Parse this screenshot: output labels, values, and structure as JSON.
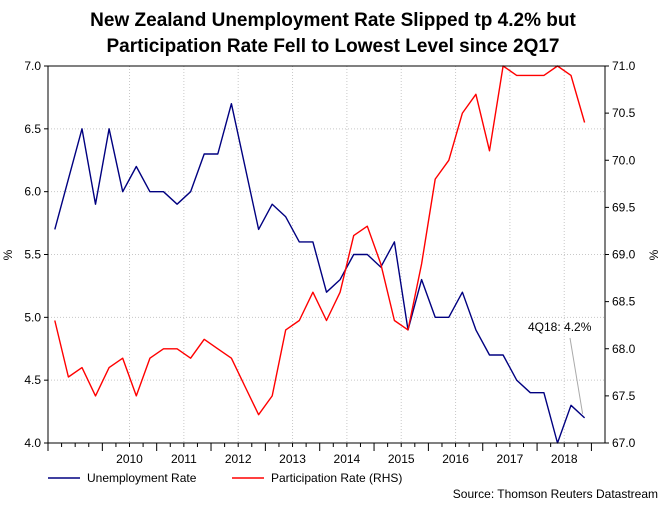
{
  "chart_data": {
    "type": "line",
    "title": "New Zealand Unemployment Rate Slipped tp 4.2% but",
    "subtitle": "Participation Rate Fell to Lowest Level since 2Q17",
    "left_axis": {
      "label": "%",
      "ylim": [
        4.0,
        7.0
      ],
      "ticks": [
        "4.0",
        "4.5",
        "5.0",
        "5.5",
        "6.0",
        "6.5",
        "7.0"
      ]
    },
    "right_axis": {
      "label": "%",
      "ylim": [
        67.0,
        71.0
      ],
      "ticks": [
        "67.0",
        "67.5",
        "68.0",
        "68.5",
        "69.0",
        "69.5",
        "70.0",
        "70.5",
        "71.0"
      ]
    },
    "x_ticks": [
      "2010",
      "2011",
      "2012",
      "2013",
      "2014",
      "2015",
      "2016",
      "2017",
      "2018"
    ],
    "x_start_year": 2009,
    "x_quarters": 41,
    "grid": true,
    "series": [
      {
        "name": "Unemployment Rate",
        "axis": "left",
        "color": "#000080",
        "values": [
          5.7,
          6.1,
          6.5,
          5.9,
          6.5,
          6.0,
          6.2,
          6.0,
          6.0,
          5.9,
          6.0,
          6.3,
          6.3,
          6.7,
          6.2,
          5.7,
          5.9,
          5.8,
          5.6,
          5.6,
          5.2,
          5.3,
          5.5,
          5.5,
          5.4,
          5.6,
          4.9,
          5.3,
          5.0,
          5.0,
          5.2,
          4.9,
          4.7,
          4.7,
          4.5,
          4.4,
          4.4,
          4.0,
          4.3,
          4.2
        ]
      },
      {
        "name": "Participation Rate (RHS)",
        "axis": "right",
        "color": "#ff0000",
        "values": [
          68.3,
          67.7,
          67.8,
          67.5,
          67.8,
          67.9,
          67.5,
          67.9,
          68.0,
          68.0,
          67.9,
          68.1,
          68.0,
          67.9,
          67.6,
          67.3,
          67.5,
          68.2,
          68.3,
          68.6,
          68.3,
          68.6,
          69.2,
          69.3,
          68.9,
          68.3,
          68.2,
          68.9,
          69.8,
          70.0,
          70.5,
          70.7,
          70.1,
          71.0,
          70.9,
          70.9,
          70.9,
          71.0,
          70.9,
          70.4
        ]
      }
    ],
    "annotation": {
      "text": "4Q18: 4.2%"
    }
  },
  "source": "Source: Thomson Reuters Datastream"
}
